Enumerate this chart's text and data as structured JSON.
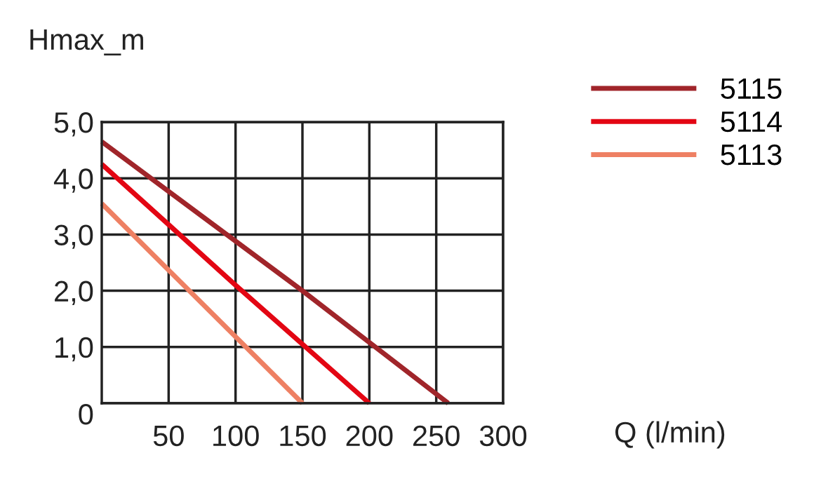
{
  "chart_data": {
    "type": "line",
    "xlabel": "Q (l/min)",
    "ylabel": "Hmax_m",
    "xlim": [
      0,
      300
    ],
    "ylim": [
      0,
      5
    ],
    "xticks": [
      50,
      100,
      150,
      200,
      250,
      300
    ],
    "yticks": [
      {
        "value": 0,
        "label": "0"
      },
      {
        "value": 1,
        "label": "1,0"
      },
      {
        "value": 2,
        "label": "2,0"
      },
      {
        "value": 3,
        "label": "3,0"
      },
      {
        "value": 4,
        "label": "4,0"
      },
      {
        "value": 5,
        "label": "5,0"
      }
    ],
    "grid": true,
    "legend": "top right",
    "marker": "none",
    "line_style": "solid",
    "series": [
      {
        "name": "5115",
        "color": "#a0252a",
        "x": [
          0,
          150,
          259
        ],
        "values": [
          4.65,
          2.0,
          0
        ]
      },
      {
        "name": "5114",
        "color": "#e30613",
        "x": [
          0,
          100,
          200
        ],
        "values": [
          4.25,
          2.1,
          0
        ]
      },
      {
        "name": "5113",
        "color": "#ee8063",
        "x": [
          0,
          150
        ],
        "values": [
          3.55,
          0
        ]
      }
    ]
  }
}
